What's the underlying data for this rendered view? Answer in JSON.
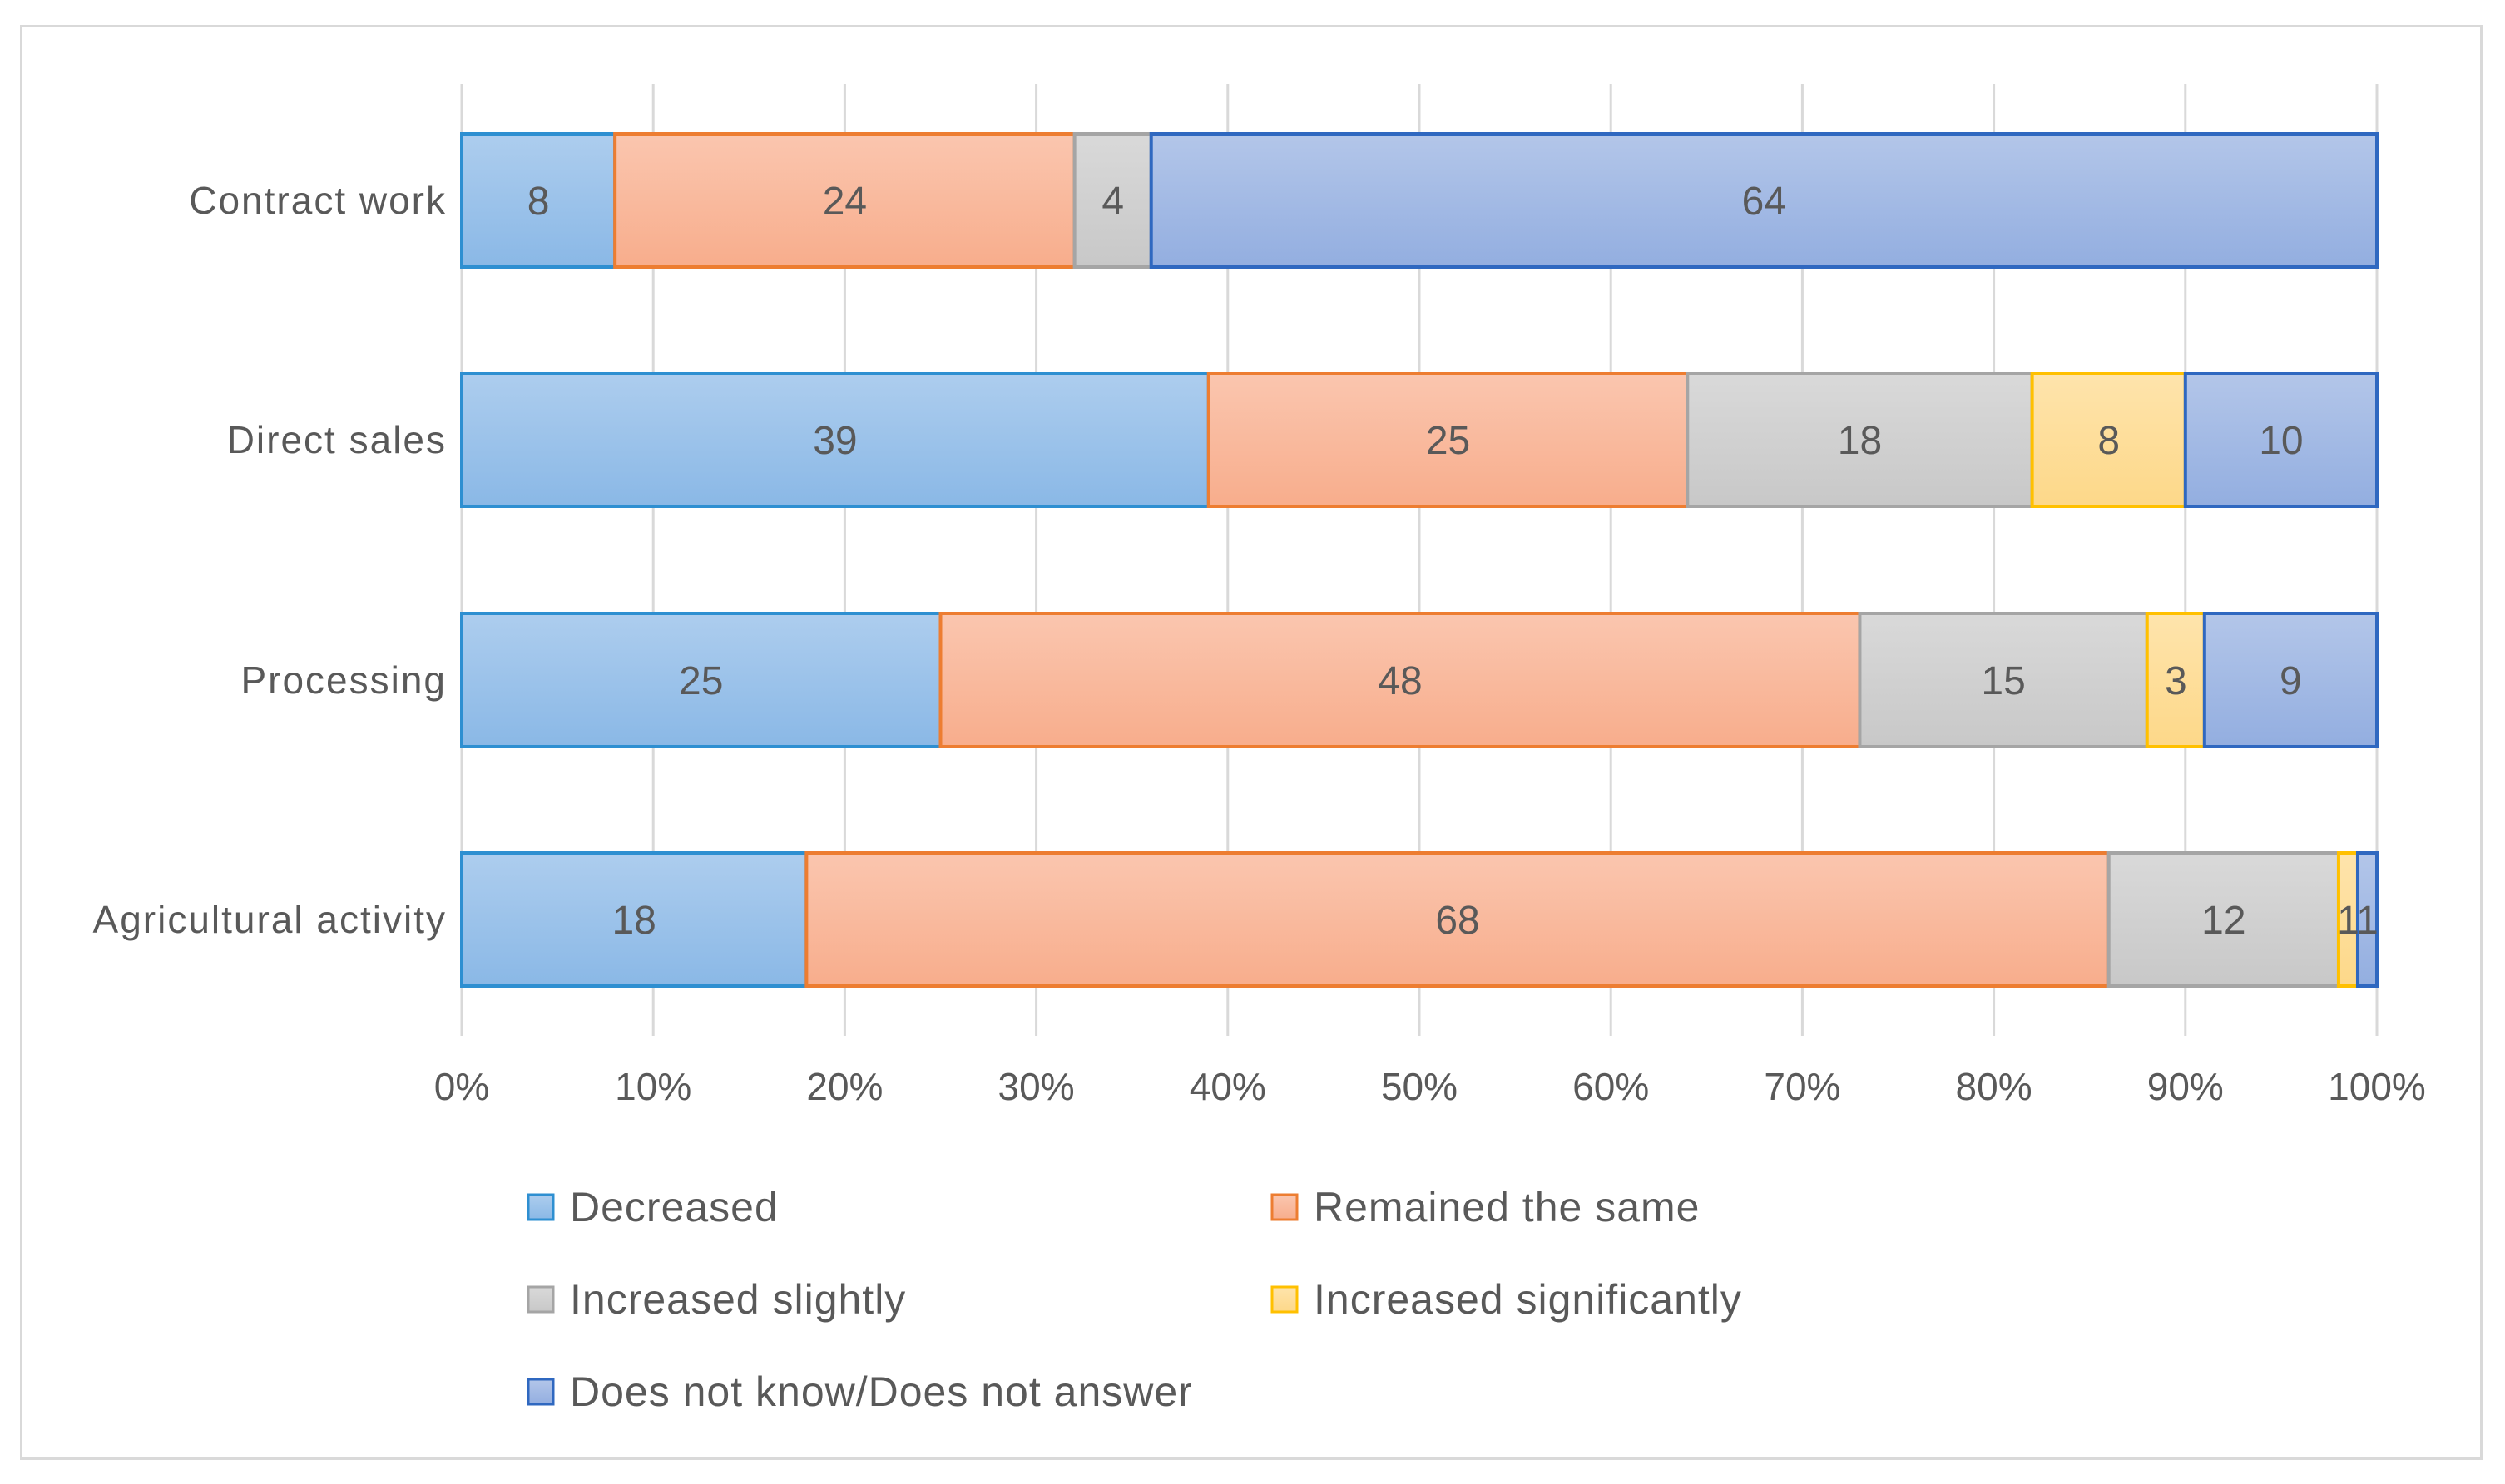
{
  "chart_data": {
    "type": "bar",
    "orientation": "horizontal",
    "stacked": "percent",
    "title": "",
    "xlabel": "",
    "ylabel": "",
    "xlim": [
      0,
      100
    ],
    "x_ticks": [
      "0%",
      "10%",
      "20%",
      "30%",
      "40%",
      "50%",
      "60%",
      "70%",
      "80%",
      "90%",
      "100%"
    ],
    "grid": true,
    "legend_position": "bottom",
    "categories": [
      "Contract work",
      "Direct sales",
      "Processing",
      "Agricultural activity"
    ],
    "series": [
      {
        "name": "Decreased",
        "values": [
          8,
          39,
          25,
          18
        ],
        "labels": [
          "8",
          "39",
          "25",
          "18"
        ],
        "color": "#8ab8e6",
        "edge": "#2e8fd1"
      },
      {
        "name": "Remained the same",
        "values": [
          24,
          25,
          48,
          68
        ],
        "labels": [
          "24",
          "25",
          "48",
          "68"
        ],
        "color": "#f8ad8c",
        "edge": "#ed7d31"
      },
      {
        "name": "Increased slightly",
        "values": [
          4,
          18,
          15,
          12
        ],
        "labels": [
          "4",
          "18",
          "15",
          "12"
        ],
        "color": "#c8c8c8",
        "edge": "#a5a5a5"
      },
      {
        "name": "Increased significantly",
        "values": [
          0,
          8,
          3,
          1
        ],
        "labels": [
          "",
          "8",
          "3",
          "1"
        ],
        "color": "#fdd889",
        "edge": "#ffc000"
      },
      {
        "name": "Does not know/Does not answer",
        "values": [
          64,
          10,
          9,
          1
        ],
        "labels": [
          "64",
          "10",
          "9",
          "1"
        ],
        "color": "#93aee0",
        "edge": "#2f68c0"
      }
    ]
  }
}
